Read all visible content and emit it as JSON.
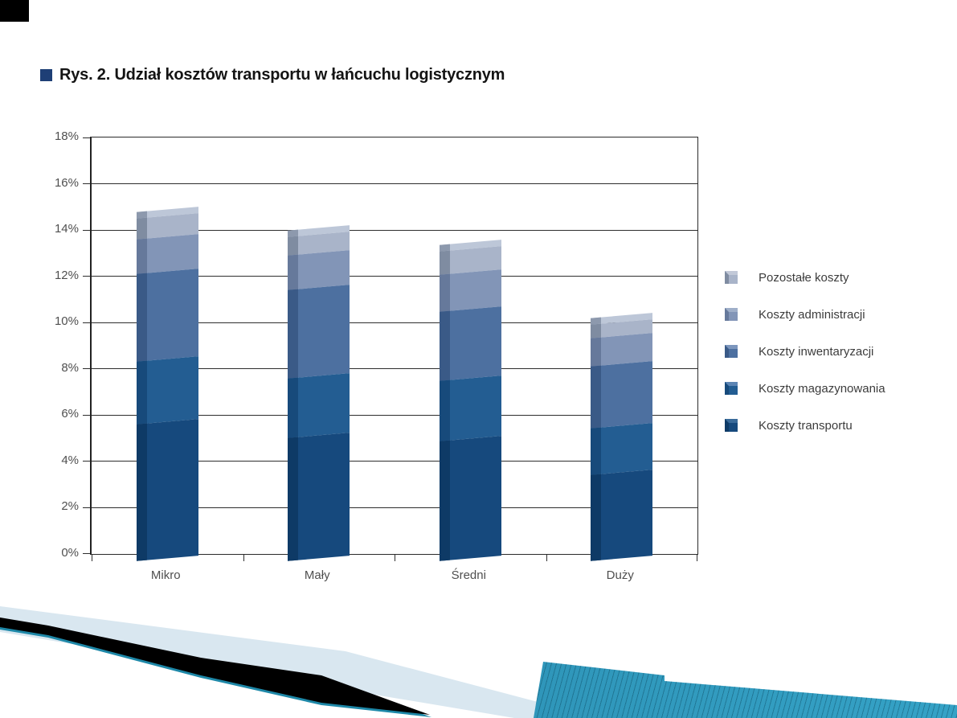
{
  "title": {
    "text": "Rys. 2. Udział kosztów transportu w łańcuchu logistycznym",
    "bullet_color": "#1e3f76"
  },
  "chart_data": {
    "type": "bar",
    "stacked": true,
    "title": "Rys. 2. Udział kosztów transportu w łańcuchu logistycznym",
    "categories": [
      "Mikro",
      "Mały",
      "Średni",
      "Duży"
    ],
    "series": [
      {
        "name": "Koszty transportu",
        "values": [
          5.9,
          5.3,
          5.2,
          3.7
        ],
        "color": "#16497d",
        "side_color": "#0e3a66",
        "top_color": "#3a6b9a"
      },
      {
        "name": "Koszty magazynowania",
        "values": [
          2.7,
          2.6,
          2.6,
          2.0
        ],
        "color": "#235d92",
        "side_color": "#174a7b",
        "top_color": "#5c85b4"
      },
      {
        "name": "Koszty inwentaryzacji",
        "values": [
          3.8,
          3.8,
          3.0,
          2.7
        ],
        "color": "#4d70a0",
        "side_color": "#3a5a87",
        "top_color": "#7c96bd"
      },
      {
        "name": "Koszty administracji",
        "values": [
          1.5,
          1.5,
          1.6,
          1.2
        ],
        "color": "#8295b7",
        "side_color": "#66799b",
        "top_color": "#9fafc9"
      },
      {
        "name": "Pozostałe koszty",
        "values": [
          0.9,
          0.8,
          1.0,
          0.6
        ],
        "color": "#a9b4c9",
        "side_color": "#7f8ca1",
        "top_color": "#c2c9d8"
      }
    ],
    "y_axis": {
      "min": 0,
      "max": 18,
      "step": 2,
      "unit": "%",
      "tick_labels": [
        "0%",
        "2%",
        "4%",
        "6%",
        "8%",
        "10%",
        "12%",
        "14%",
        "16%",
        "18%"
      ]
    },
    "legend": {
      "position": "right",
      "items_top_to_bottom": [
        "Pozostałe koszty",
        "Koszty administracji",
        "Koszty inwentaryzacji",
        "Koszty magazynowania",
        "Koszty transportu"
      ]
    },
    "grid": true,
    "bar_top_cap_color": "#bdc7d8",
    "bar_top_cap_side_color": "#8d99ad"
  },
  "decor": {
    "corner_black": "#000000",
    "swoosh_black": "#000000",
    "swoosh_pale_blue": "#d9e7f0",
    "swoosh_teal_line": "#1e88a8",
    "ribbon_teal_dark": "#2787aa",
    "ribbon_teal_light": "#35a2c6"
  }
}
